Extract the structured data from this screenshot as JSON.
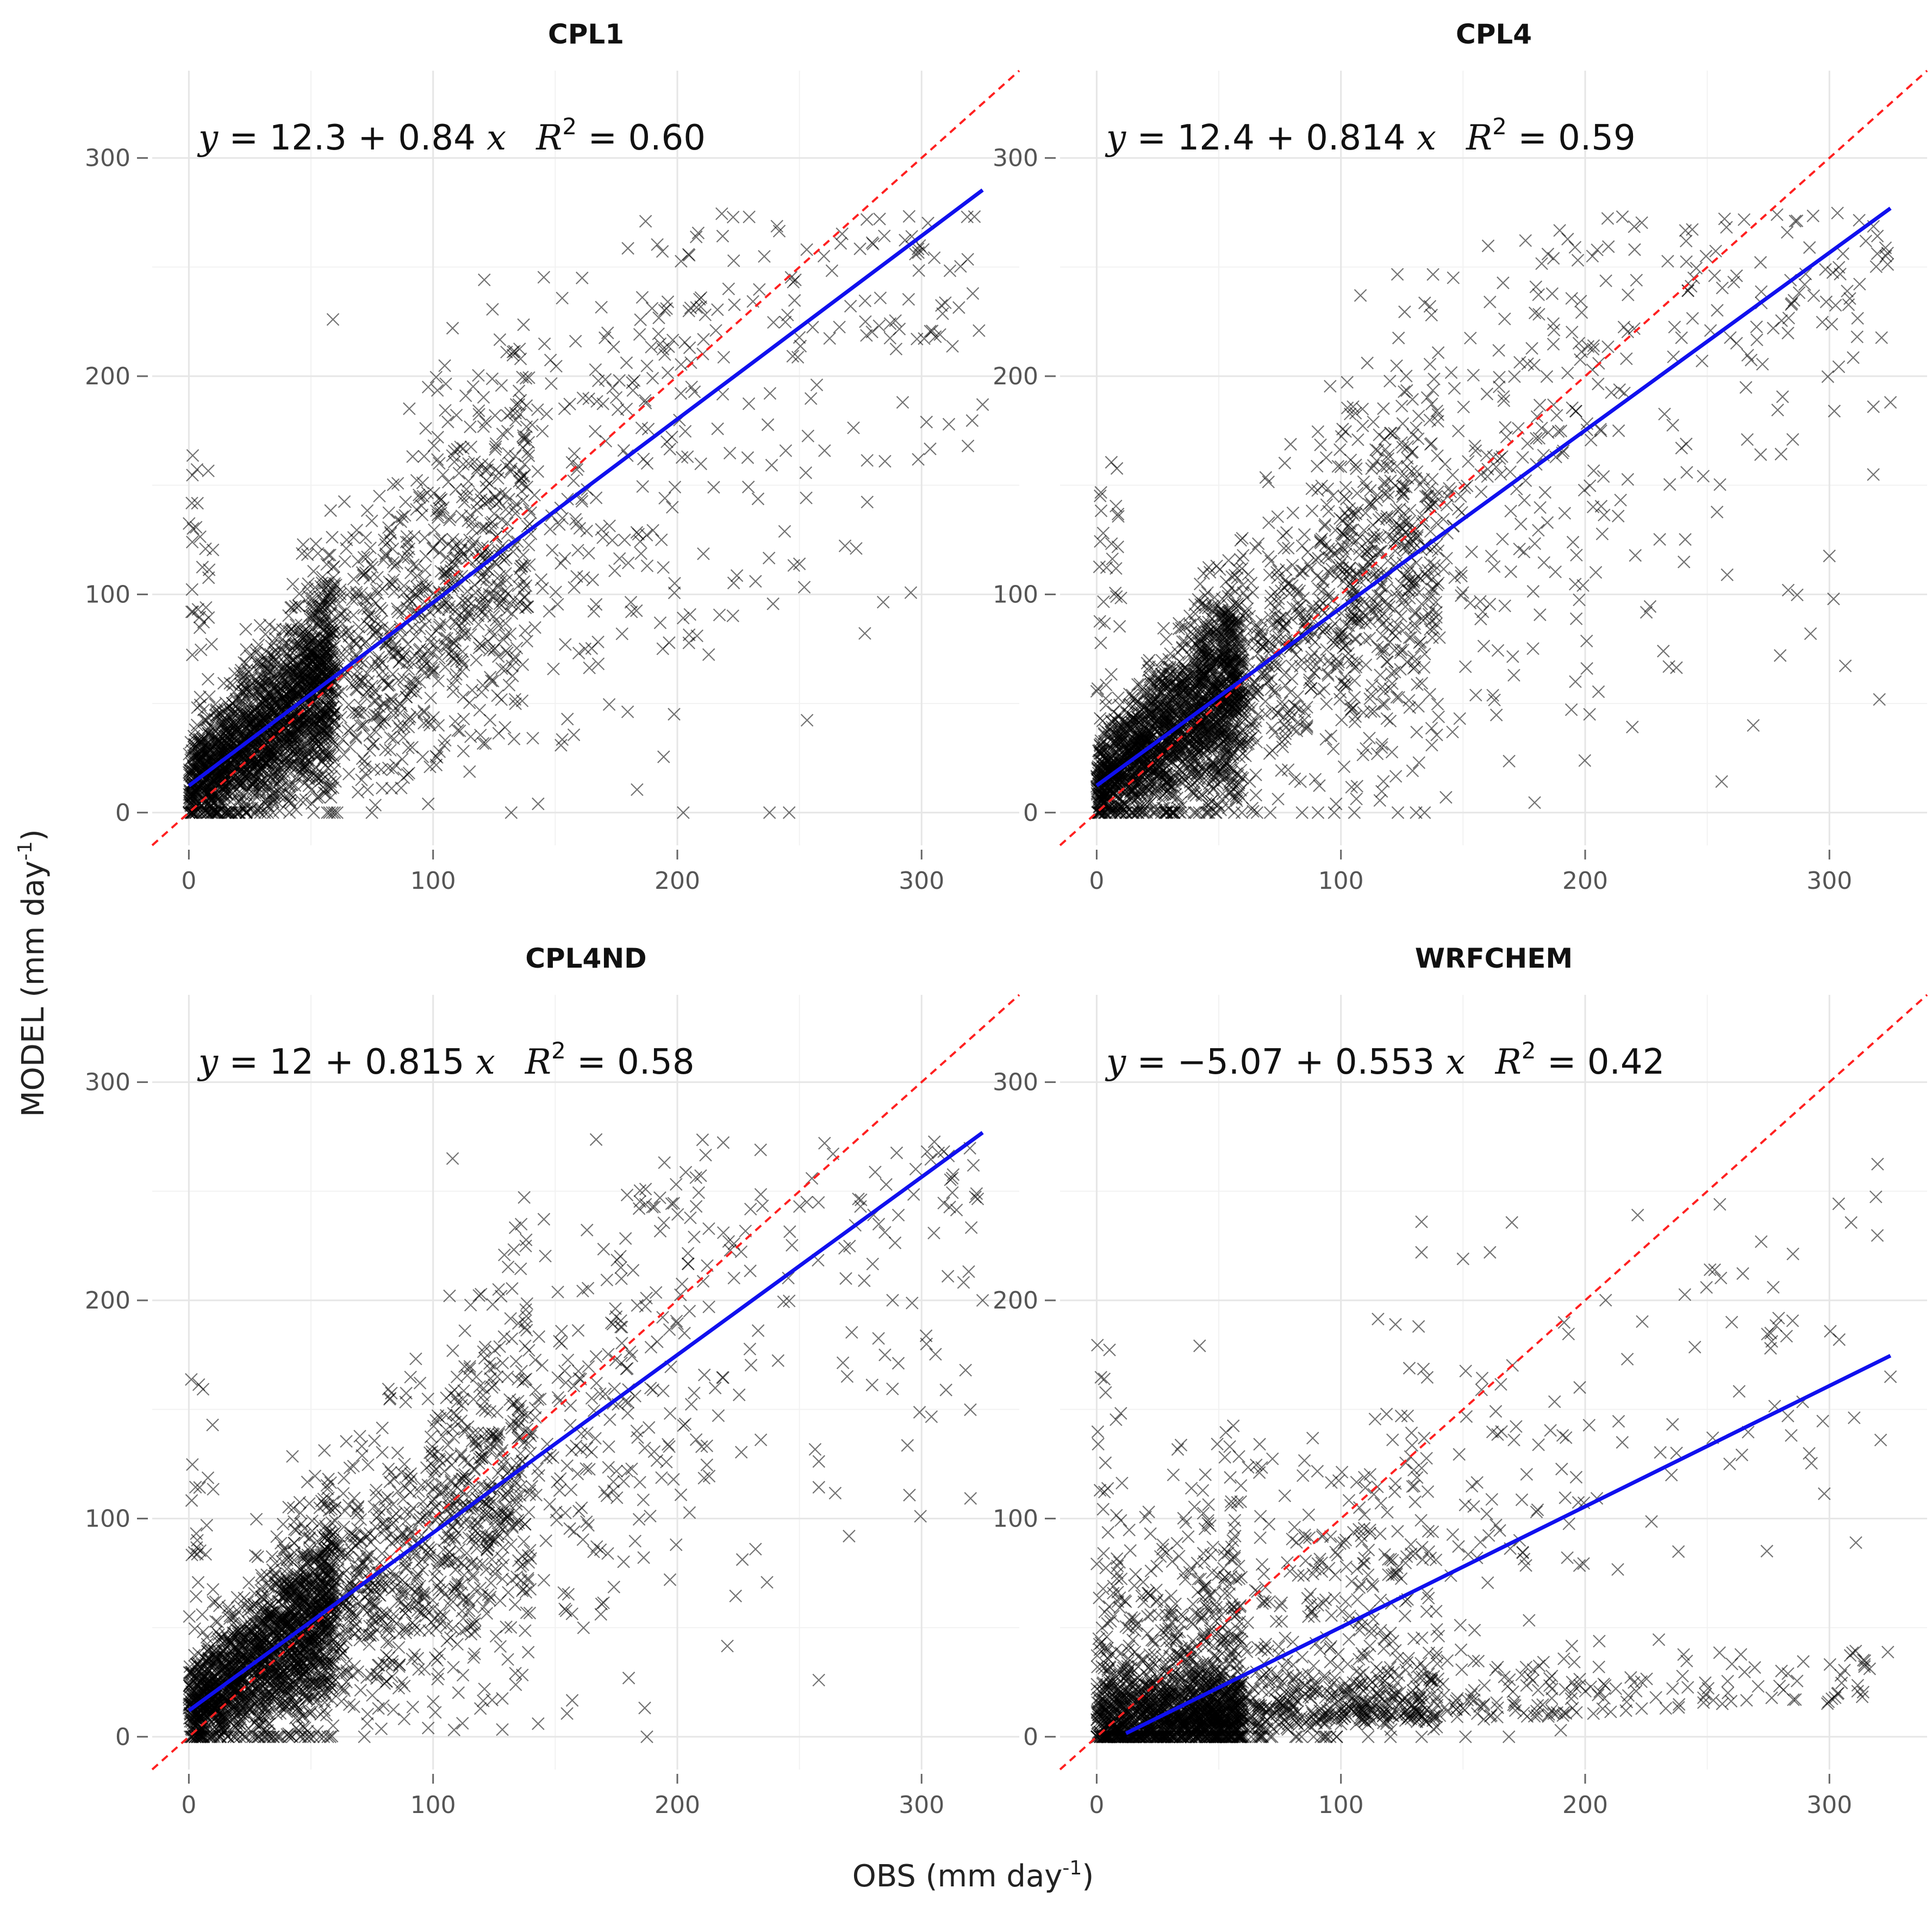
{
  "chart_data": {
    "shared": {
      "xlabel_prefix": "OBS (mm day",
      "ylabel_prefix": "MODEL (mm day",
      "unit_exponent": "-1",
      "unit_suffix": ")",
      "xlim": [
        -15,
        340
      ],
      "ylim": [
        -15,
        340
      ],
      "xticks": [
        0,
        100,
        200,
        300
      ],
      "yticks": [
        0,
        100,
        200,
        300
      ],
      "tick_labels": [
        "0",
        "100",
        "200",
        "300"
      ],
      "grid": true,
      "reference_line": {
        "type": "1:1",
        "style": "dashed",
        "color": "#ff2020"
      },
      "fit_line_color": "#1010ee",
      "point_marker": "x",
      "point_color": "#000000"
    },
    "panels": [
      {
        "type": "scatter",
        "title": "CPL1",
        "eq_lhs": "y",
        "eq_body": " = 12.3 + 0.84 ",
        "eq_x": "x",
        "r2_symbol": "R",
        "r2_exp": "2",
        "r2_value": " = 0.60",
        "fit": {
          "intercept": 12.3,
          "slope": 0.84,
          "x_range": [
            0,
            325
          ]
        },
        "seed": 11,
        "n_points": 3200,
        "regime": "std",
        "outliers": [
          [
            187,
            271
          ],
          [
            59,
            226
          ],
          [
            108,
            222
          ],
          [
            161,
            245
          ],
          [
            253,
            258
          ],
          [
            260,
            255
          ],
          [
            221,
            240
          ],
          [
            277,
            225
          ],
          [
            319,
            168
          ],
          [
            325,
            187
          ],
          [
            302,
            179
          ],
          [
            285,
            161
          ],
          [
            232,
            106
          ],
          [
            250,
            114
          ],
          [
            143,
            4
          ],
          [
            98,
            4
          ],
          [
            193,
            87
          ]
        ]
      },
      {
        "type": "scatter",
        "title": "CPL4",
        "eq_lhs": "y",
        "eq_body": " = 12.4 + 0.814 ",
        "eq_x": "x",
        "r2_symbol": "R",
        "r2_exp": "2",
        "r2_value": " = 0.59",
        "fit": {
          "intercept": 12.4,
          "slope": 0.814,
          "x_range": [
            0,
            325
          ]
        },
        "seed": 23,
        "n_points": 3200,
        "regime": "std",
        "outliers": [
          [
            187,
            254
          ],
          [
            108,
            237
          ],
          [
            161,
            234
          ],
          [
            221,
            244
          ],
          [
            253,
            246
          ],
          [
            262,
            246
          ],
          [
            277,
            222
          ],
          [
            285,
            171
          ],
          [
            302,
            184
          ],
          [
            318,
            186
          ],
          [
            325,
            188
          ],
          [
            232,
            74
          ],
          [
            143,
            7
          ],
          [
            98,
            4
          ],
          [
            196,
            60
          ]
        ]
      },
      {
        "type": "scatter",
        "title": "CPL4ND",
        "eq_lhs": "y",
        "eq_body": " = 12 + 0.815 ",
        "eq_x": "x",
        "r2_symbol": "R",
        "r2_exp": "2",
        "r2_value": " = 0.58",
        "fit": {
          "intercept": 12,
          "slope": 0.815,
          "x_range": [
            0,
            325
          ]
        },
        "seed": 37,
        "n_points": 3200,
        "regime": "std",
        "outliers": [
          [
            108,
            265
          ],
          [
            187,
            251
          ],
          [
            187,
            244
          ],
          [
            253,
            245
          ],
          [
            275,
            243
          ],
          [
            221,
            227
          ],
          [
            269,
            210
          ],
          [
            325,
            200
          ],
          [
            302,
            180
          ],
          [
            318,
            168
          ],
          [
            285,
            175
          ],
          [
            232,
            86
          ],
          [
            143,
            6
          ],
          [
            98,
            4
          ],
          [
            197,
            72
          ]
        ]
      },
      {
        "type": "scatter",
        "title": "WRFCHEM",
        "eq_lhs": "y",
        "eq_body": " = −5.07 + 0.553 ",
        "eq_x": "x",
        "r2_symbol": "R",
        "r2_exp": "2",
        "r2_value": " = 0.42",
        "fit": {
          "intercept": -5.07,
          "slope": 0.553,
          "x_range": [
            12,
            325
          ]
        },
        "seed": 53,
        "n_points": 2600,
        "regime": "wrf",
        "outliers": [
          [
            133,
            236
          ],
          [
            133,
            222
          ],
          [
            150,
            219
          ],
          [
            161,
            222
          ],
          [
            253,
            214
          ],
          [
            277,
            206
          ],
          [
            304,
            182
          ],
          [
            325,
            165
          ],
          [
            321,
            136
          ],
          [
            260,
            190
          ],
          [
            283,
            147
          ],
          [
            233,
            13
          ],
          [
            151,
            0
          ],
          [
            190,
            3
          ],
          [
            217,
            16
          ]
        ]
      }
    ]
  }
}
